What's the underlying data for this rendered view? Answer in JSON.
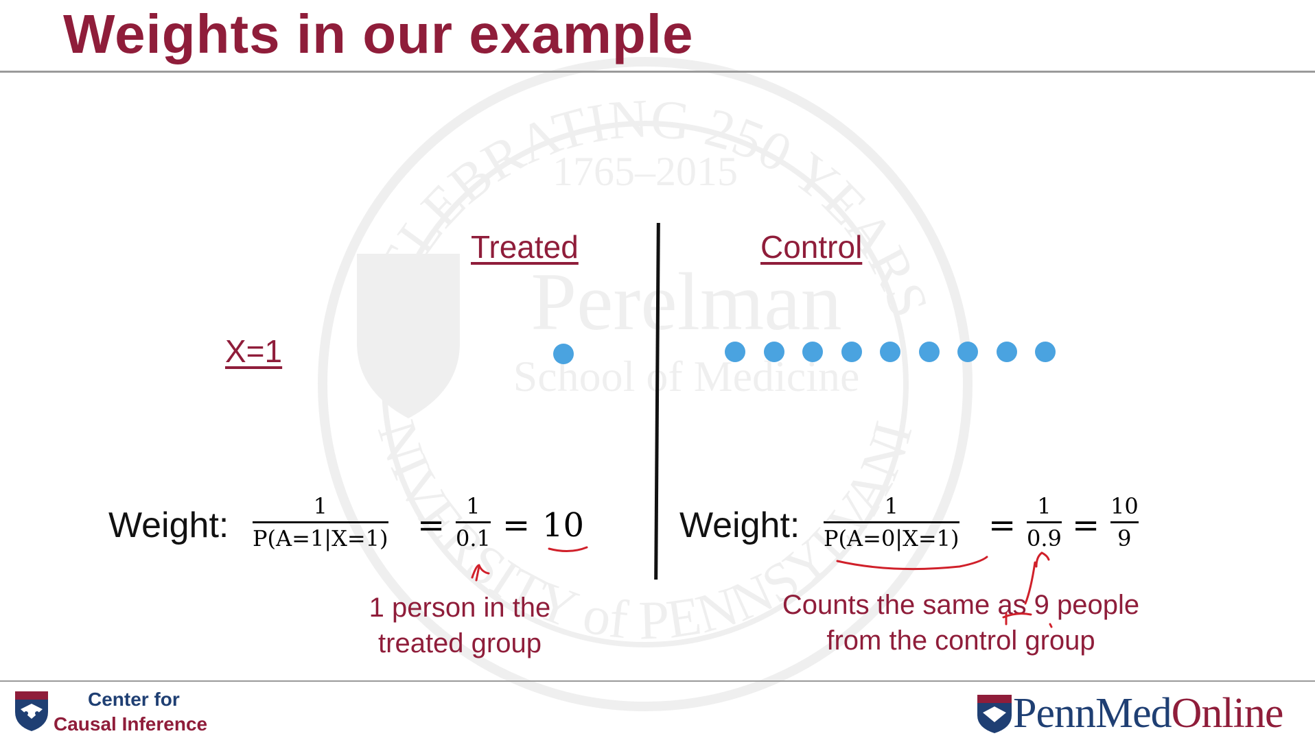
{
  "slide": {
    "title": "Weights in our example",
    "treated_header": "Treated",
    "control_header": "Control",
    "x_label": "X=1",
    "treated_dot_count": 1,
    "control_dot_count": 9
  },
  "treated_formula": {
    "label": "Weight:",
    "frac1_num": "1",
    "frac1_den": "P(A=1|X=1)",
    "eq1": "=",
    "frac2_num": "1",
    "frac2_den": "0.1",
    "eq2": "=",
    "result": "10"
  },
  "control_formula": {
    "label": "Weight:",
    "frac1_num": "1",
    "frac1_den": "P(A=0|X=1)",
    "eq1": "=",
    "frac2_num": "1",
    "frac2_den": "0.9",
    "eq2": "=",
    "frac3_num": "10",
    "frac3_den": "9"
  },
  "annotations": {
    "treated_line1": "1 person in the",
    "treated_line2": "treated group",
    "control_line1": "Counts the same as 9 people",
    "control_line2": "from the control group"
  },
  "footer": {
    "center_line1": "Center for",
    "center_line2": "Causal Inference",
    "brand_penn_med": "PennMed",
    "brand_online": "Online"
  },
  "watermark": {
    "arc_text": "CELEBRATING 250 YEARS",
    "years": "1765–2015",
    "name": "Perelman",
    "school": "School of Medicine",
    "bottom_arc": "UNIVERSITY of PENNSYLVANIA"
  },
  "colors": {
    "accent": "#8f1d3a",
    "dot": "#4aa3e0",
    "navy": "#1f3f73"
  }
}
